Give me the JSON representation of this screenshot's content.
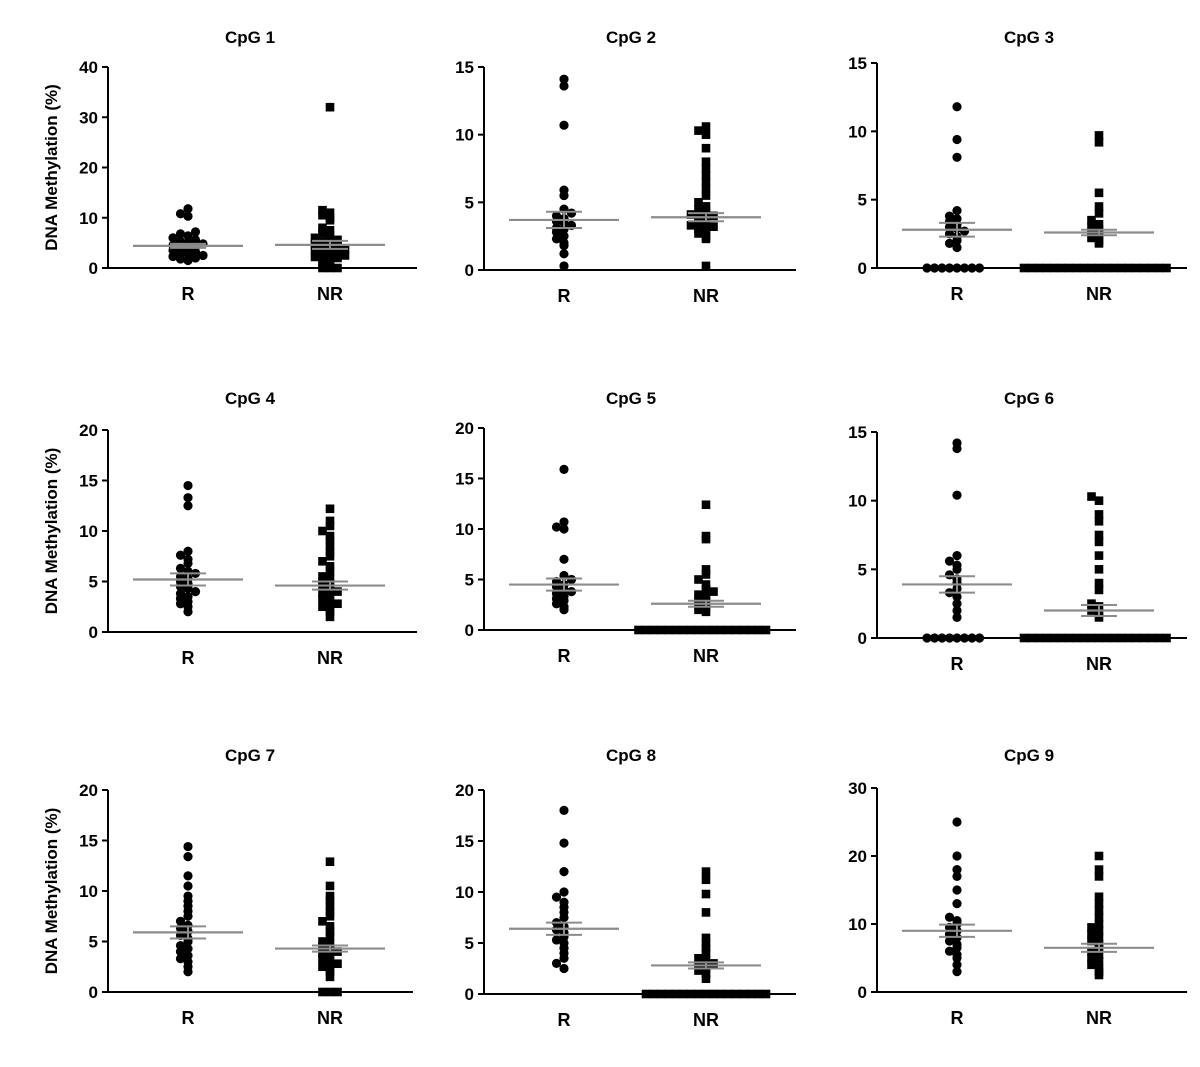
{
  "figure": {
    "ylabel": "DNA Methylation (%)",
    "colors": {
      "marker": "#000000",
      "mean_line": "#8c8c8c",
      "axis": "#000000"
    }
  },
  "chart_data": [
    {
      "type": "scatter",
      "title": "CpG 1",
      "categories": [
        "R",
        "NR"
      ],
      "ylim": [
        0,
        40
      ],
      "yticks": [
        0,
        10,
        20,
        30,
        40
      ],
      "mean": [
        4.4,
        4.6
      ],
      "sem": [
        0.4,
        0.8
      ],
      "R": [
        1.5,
        1.8,
        2.0,
        2.3,
        2.5,
        2.8,
        3.0,
        3.2,
        3.5,
        3.8,
        4.0,
        4.2,
        4.5,
        4.8,
        5.0,
        5.3,
        5.6,
        6.0,
        6.4,
        6.8,
        7.2,
        10.3,
        10.8,
        11.8
      ],
      "NR": [
        0,
        0,
        0,
        0.5,
        1.0,
        1.5,
        1.8,
        2.0,
        2.2,
        2.5,
        2.7,
        3.0,
        3.2,
        3.5,
        3.7,
        4.0,
        4.2,
        4.5,
        4.8,
        5.0,
        5.3,
        5.6,
        6.0,
        6.5,
        7.0,
        7.5,
        8.0,
        9.5,
        10.0,
        10.5,
        11.0,
        11.5,
        32.0
      ]
    },
    {
      "type": "scatter",
      "title": "CpG 2",
      "categories": [
        "R",
        "NR"
      ],
      "ylim": [
        0,
        15
      ],
      "yticks": [
        0,
        5,
        10,
        15
      ],
      "mean": [
        3.7,
        3.9
      ],
      "sem": [
        0.6,
        0.3
      ],
      "R": [
        0.3,
        1.2,
        1.8,
        2.0,
        2.3,
        2.5,
        2.8,
        3.0,
        3.1,
        3.3,
        3.5,
        3.6,
        3.8,
        4.0,
        4.2,
        4.5,
        5.5,
        5.9,
        10.7,
        13.6,
        14.1
      ],
      "NR": [
        0.3,
        2.3,
        2.5,
        2.7,
        2.9,
        3.0,
        3.2,
        3.3,
        3.5,
        3.6,
        3.8,
        3.9,
        4.0,
        4.1,
        4.3,
        4.5,
        4.7,
        5.0,
        5.5,
        6.0,
        6.5,
        7.0,
        7.5,
        8.0,
        9.0,
        10.0,
        10.3,
        10.6
      ]
    },
    {
      "type": "scatter",
      "title": "CpG 3",
      "categories": [
        "R",
        "NR"
      ],
      "ylim": [
        0,
        15
      ],
      "yticks": [
        0,
        5,
        10,
        15
      ],
      "mean": [
        2.8,
        2.6
      ],
      "sem": [
        0.5,
        0.2
      ],
      "R": [
        0,
        0,
        0,
        0,
        0,
        0,
        0,
        0,
        1.5,
        1.8,
        2.0,
        2.3,
        2.5,
        2.7,
        2.9,
        3.0,
        3.2,
        3.4,
        3.6,
        3.8,
        4.2,
        8.1,
        9.4,
        11.8
      ],
      "NR": [
        0,
        0,
        0,
        0,
        0,
        0,
        0,
        0,
        0,
        0,
        0,
        0,
        0,
        0,
        0,
        0,
        0,
        0,
        0,
        0,
        1.8,
        2.0,
        2.2,
        2.4,
        2.6,
        2.8,
        3.0,
        3.2,
        3.5,
        4.0,
        4.5,
        5.5,
        9.2,
        9.7
      ]
    },
    {
      "type": "scatter",
      "title": "CpG 4",
      "categories": [
        "R",
        "NR"
      ],
      "ylim": [
        0,
        20
      ],
      "yticks": [
        0,
        5,
        10,
        15,
        20
      ],
      "mean": [
        5.2,
        4.6
      ],
      "sem": [
        0.6,
        0.4
      ],
      "R": [
        2.0,
        2.5,
        2.8,
        3.0,
        3.3,
        3.5,
        3.8,
        4.0,
        4.3,
        4.5,
        4.8,
        5.0,
        5.3,
        5.5,
        5.8,
        6.0,
        6.3,
        6.8,
        7.2,
        7.6,
        8.0,
        12.5,
        13.3,
        14.5
      ],
      "NR": [
        1.5,
        2.0,
        2.3,
        2.5,
        2.8,
        3.0,
        3.3,
        3.5,
        3.8,
        4.0,
        4.3,
        4.5,
        4.8,
        5.0,
        5.3,
        5.5,
        6.0,
        6.5,
        7.0,
        7.5,
        8.0,
        8.5,
        9.0,
        9.5,
        10.0,
        10.5,
        11.0,
        12.2
      ]
    },
    {
      "type": "scatter",
      "title": "CpG 5",
      "categories": [
        "R",
        "NR"
      ],
      "ylim": [
        0,
        20
      ],
      "yticks": [
        0,
        5,
        10,
        15,
        20
      ],
      "mean": [
        4.5,
        2.6
      ],
      "sem": [
        0.6,
        0.3
      ],
      "R": [
        2.0,
        2.3,
        2.6,
        2.9,
        3.1,
        3.3,
        3.6,
        3.8,
        4.0,
        4.3,
        4.5,
        4.8,
        5.0,
        5.4,
        7.0,
        10.0,
        10.2,
        10.7,
        15.9
      ],
      "NR": [
        0,
        0,
        0,
        0,
        0,
        0,
        0,
        0,
        0,
        0,
        0,
        0,
        0,
        0,
        0,
        0,
        0,
        0,
        1.8,
        2.0,
        2.3,
        2.5,
        2.8,
        3.0,
        3.3,
        3.5,
        3.8,
        4.0,
        4.5,
        5.0,
        5.5,
        6.0,
        9.0,
        9.3,
        12.4
      ]
    },
    {
      "type": "scatter",
      "title": "CpG 6",
      "categories": [
        "R",
        "NR"
      ],
      "ylim": [
        0,
        15
      ],
      "yticks": [
        0,
        5,
        10,
        15
      ],
      "mean": [
        3.9,
        2.0
      ],
      "sem": [
        0.6,
        0.4
      ],
      "R": [
        0,
        0,
        0,
        0,
        0,
        0,
        0,
        0,
        1.5,
        2.0,
        2.5,
        3.0,
        3.3,
        3.6,
        4.0,
        4.3,
        4.6,
        5.0,
        5.3,
        5.6,
        6.0,
        10.4,
        13.8,
        14.2
      ],
      "NR": [
        0,
        0,
        0,
        0,
        0,
        0,
        0,
        0,
        0,
        0,
        0,
        0,
        0,
        0,
        0,
        0,
        0,
        0,
        0,
        0,
        1.5,
        1.8,
        2.0,
        2.3,
        2.5,
        3.5,
        4.0,
        5.0,
        6.0,
        7.0,
        7.5,
        8.5,
        9.0,
        10.0,
        10.3
      ]
    },
    {
      "type": "scatter",
      "title": "CpG 7",
      "categories": [
        "R",
        "NR"
      ],
      "ylim": [
        0,
        20
      ],
      "yticks": [
        0,
        5,
        10,
        15,
        20
      ],
      "mean": [
        5.9,
        4.3
      ],
      "sem": [
        0.6,
        0.3
      ],
      "R": [
        2.0,
        2.5,
        3.0,
        3.3,
        3.6,
        4.0,
        4.3,
        4.6,
        5.0,
        5.3,
        5.6,
        6.0,
        6.3,
        6.6,
        7.0,
        7.5,
        8.0,
        8.5,
        9.0,
        9.5,
        10.5,
        11.5,
        13.4,
        14.4
      ],
      "NR": [
        0,
        0,
        0,
        1.5,
        2.0,
        2.3,
        2.5,
        2.8,
        3.0,
        3.3,
        3.5,
        3.8,
        4.0,
        4.3,
        4.5,
        4.8,
        5.0,
        5.5,
        6.0,
        6.5,
        7.0,
        7.5,
        8.0,
        8.5,
        9.0,
        9.5,
        10.5,
        12.9
      ]
    },
    {
      "type": "scatter",
      "title": "CpG 8",
      "categories": [
        "R",
        "NR"
      ],
      "ylim": [
        0,
        20
      ],
      "yticks": [
        0,
        5,
        10,
        15,
        20
      ],
      "mean": [
        6.4,
        2.8
      ],
      "sem": [
        0.6,
        0.3
      ],
      "R": [
        2.5,
        3.0,
        3.5,
        4.0,
        4.5,
        5.0,
        5.3,
        5.6,
        6.0,
        6.3,
        6.6,
        7.0,
        7.5,
        8.0,
        8.5,
        9.0,
        9.5,
        10.0,
        12.0,
        14.8,
        18.0
      ],
      "NR": [
        0,
        0,
        0,
        0,
        0,
        0,
        0,
        0,
        0,
        0,
        0,
        0,
        0,
        0,
        0,
        0,
        0,
        1.5,
        2.0,
        2.3,
        2.5,
        2.8,
        3.0,
        3.3,
        3.5,
        4.0,
        4.5,
        5.0,
        5.5,
        8.0,
        9.8,
        11.2,
        12.0
      ]
    },
    {
      "type": "scatter",
      "title": "CpG 9",
      "categories": [
        "R",
        "NR"
      ],
      "ylim": [
        0,
        30
      ],
      "yticks": [
        0,
        10,
        20,
        30
      ],
      "mean": [
        9.0,
        6.5
      ],
      "sem": [
        0.9,
        0.6
      ],
      "R": [
        3.0,
        4.0,
        5.0,
        5.5,
        6.0,
        6.5,
        7.0,
        7.5,
        8.0,
        8.5,
        9.0,
        9.5,
        10.0,
        10.5,
        11.0,
        13.0,
        15.0,
        17.0,
        18.0,
        20.0,
        25.0
      ],
      "NR": [
        2.5,
        3.0,
        3.5,
        4.0,
        4.5,
        5.0,
        5.5,
        6.0,
        6.5,
        7.0,
        7.5,
        8.0,
        8.5,
        9.0,
        9.5,
        10.0,
        11.0,
        12.0,
        13.0,
        14.0,
        17.0,
        18.0,
        20.0
      ]
    }
  ]
}
